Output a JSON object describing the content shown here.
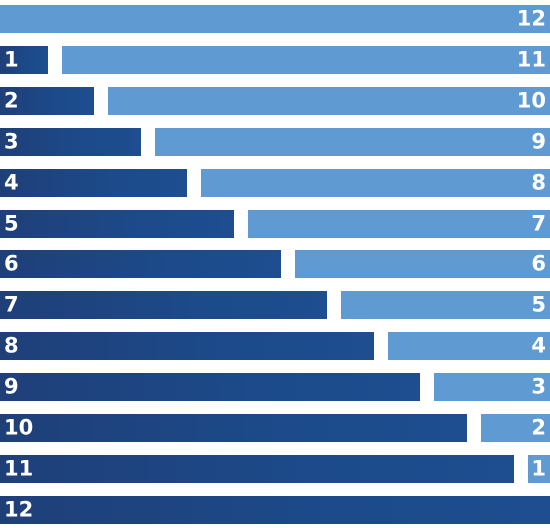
{
  "palette": {
    "dark": "#1d4584",
    "light": "#5f9bd2"
  },
  "total": 12,
  "rows": [
    {
      "dark_label": "",
      "light_label": "12"
    },
    {
      "dark_label": "1",
      "light_label": "11"
    },
    {
      "dark_label": "2",
      "light_label": "10"
    },
    {
      "dark_label": "3",
      "light_label": "9"
    },
    {
      "dark_label": "4",
      "light_label": "8"
    },
    {
      "dark_label": "5",
      "light_label": "7"
    },
    {
      "dark_label": "6",
      "light_label": "6"
    },
    {
      "dark_label": "7",
      "light_label": "5"
    },
    {
      "dark_label": "8",
      "light_label": "4"
    },
    {
      "dark_label": "9",
      "light_label": "3"
    },
    {
      "dark_label": "10",
      "light_label": "2"
    },
    {
      "dark_label": "11",
      "light_label": "1"
    },
    {
      "dark_label": "12",
      "light_label": ""
    }
  ]
}
